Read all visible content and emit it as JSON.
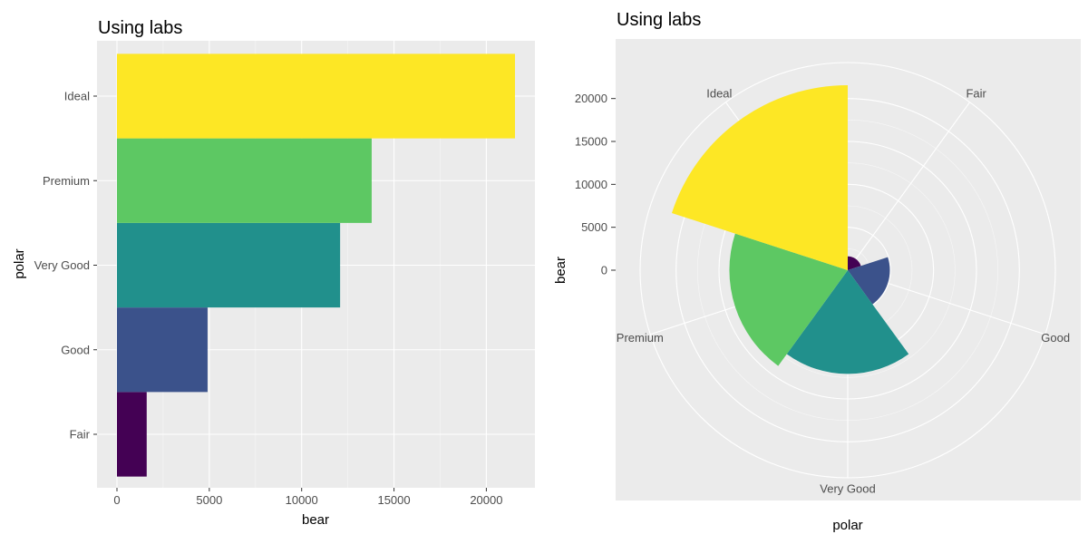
{
  "chart_data": [
    {
      "type": "bar",
      "orientation": "horizontal",
      "title": "Using labs",
      "xlabel": "bear",
      "ylabel": "polar",
      "categories": [
        "Fair",
        "Good",
        "Very Good",
        "Premium",
        "Ideal"
      ],
      "values": [
        1610,
        4906,
        12082,
        13791,
        21551
      ],
      "colors": [
        "#440154",
        "#3B528B",
        "#21908C",
        "#5DC863",
        "#FDE725"
      ],
      "xlim": [
        0,
        22500
      ],
      "xticks": [
        0,
        5000,
        10000,
        15000,
        20000
      ],
      "xtick_labels": [
        "0",
        "5000",
        "10000",
        "15000",
        "20000"
      ],
      "grid": true,
      "legend": "none"
    },
    {
      "type": "pie",
      "subtype": "coxcomb",
      "title": "Using labs",
      "xlabel": "polar",
      "ylabel": "bear",
      "categories": [
        "Fair",
        "Good",
        "Very Good",
        "Premium",
        "Ideal"
      ],
      "values": [
        1610,
        4906,
        12082,
        13791,
        21551
      ],
      "colors": [
        "#440154",
        "#3B528B",
        "#21908C",
        "#5DC863",
        "#FDE725"
      ],
      "rlim": [
        0,
        21551
      ],
      "rticks": [
        0,
        5000,
        10000,
        15000,
        20000
      ],
      "rtick_labels": [
        "0",
        "5000",
        "10000",
        "15000",
        "20000"
      ],
      "grid": true,
      "legend": "none"
    }
  ]
}
